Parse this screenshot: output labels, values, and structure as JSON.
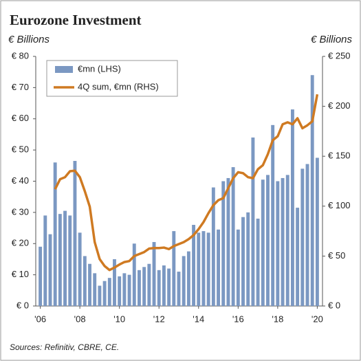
{
  "chart_data": {
    "type": "bar",
    "title": "Eurozone Investment",
    "ylabel": "€ Billions",
    "y2label": "€ Billions",
    "source": "Sources: Refinitiv, CBRE, CE.",
    "legend": "upper left",
    "categories": [
      "'06",
      null,
      null,
      null,
      null,
      null,
      null,
      null,
      "'08",
      null,
      null,
      null,
      null,
      null,
      null,
      null,
      "'10",
      null,
      null,
      null,
      null,
      null,
      null,
      null,
      "'12",
      null,
      null,
      null,
      null,
      null,
      null,
      null,
      "'14",
      null,
      null,
      null,
      null,
      null,
      null,
      null,
      "'16",
      null,
      null,
      null,
      null,
      null,
      null,
      null,
      "'18",
      null,
      null,
      null,
      null,
      null,
      null,
      null,
      "'20"
    ],
    "series": [
      {
        "name": "€mn (LHS)",
        "type": "bar",
        "color": "#7b98c2",
        "values": [
          19,
          29,
          23,
          46,
          29.5,
          30.5,
          29,
          46.5,
          23.5,
          16,
          13.5,
          10.5,
          6.5,
          8,
          9,
          15,
          9.5,
          10.5,
          10,
          20,
          11.5,
          12.5,
          13.5,
          20.5,
          11.5,
          13,
          12,
          24,
          11,
          16,
          17.5,
          26,
          23.5,
          24,
          23.5,
          38,
          24.5,
          40,
          41,
          44.5,
          24.5,
          28.5,
          30,
          54,
          28,
          40.5,
          42,
          58,
          40,
          41,
          42,
          63,
          31.5,
          44,
          45.5,
          74,
          47.5
        ]
      },
      {
        "name": "4Q sum, €mn (RHS)",
        "type": "line",
        "axis": "y2",
        "color": "#cf7a22",
        "values": [
          null,
          null,
          null,
          117,
          127,
          129,
          135,
          135.5,
          129,
          115,
          99.5,
          64,
          47,
          40,
          36,
          38.5,
          41.5,
          44,
          45,
          50,
          52,
          54,
          57.5,
          58,
          58,
          58.5,
          57,
          60,
          62,
          64,
          67,
          71,
          77,
          84,
          93,
          101,
          106,
          108,
          118,
          128,
          134,
          133,
          129,
          128,
          137,
          141,
          152,
          166,
          170,
          182,
          184,
          182,
          188,
          178,
          181,
          185,
          212
        ]
      }
    ],
    "ylim": [
      0,
      80
    ],
    "yticks": [
      {
        "value": 0,
        "label": "€ 0"
      },
      {
        "value": 10,
        "label": "€ 10"
      },
      {
        "value": 20,
        "label": "€ 20"
      },
      {
        "value": 30,
        "label": "€ 30"
      },
      {
        "value": 40,
        "label": "€ 40"
      },
      {
        "value": 50,
        "label": "€ 50"
      },
      {
        "value": 60,
        "label": "€ 60"
      },
      {
        "value": 70,
        "label": "€ 70"
      },
      {
        "value": 80,
        "label": "€ 80"
      }
    ],
    "y2lim": [
      0,
      250
    ],
    "y2ticks": [
      {
        "value": 0,
        "label": "€ 0"
      },
      {
        "value": 50,
        "label": "€ 50"
      },
      {
        "value": 100,
        "label": "€ 100"
      },
      {
        "value": 150,
        "label": "€ 150"
      },
      {
        "value": 200,
        "label": "€ 200"
      },
      {
        "value": 250,
        "label": "€ 250"
      }
    ]
  }
}
